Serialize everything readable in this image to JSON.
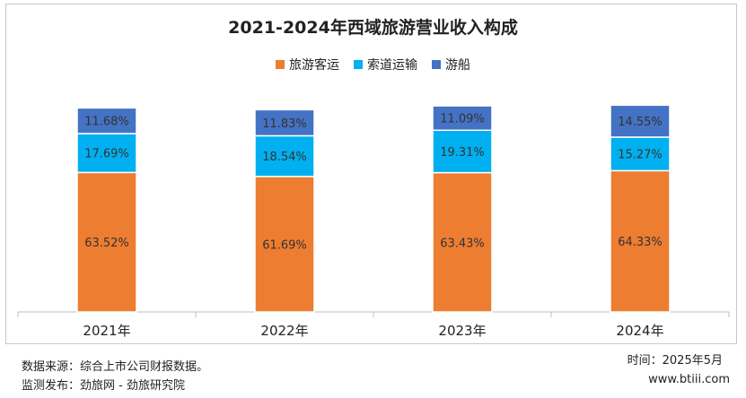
{
  "chart_data": {
    "type": "bar",
    "stacked": true,
    "title": "2021-2024年西域旅游营业收入构成",
    "categories": [
      "2021年",
      "2022年",
      "2023年",
      "2024年"
    ],
    "series": [
      {
        "name": "旅游客运",
        "color": "#ED7D31",
        "values": [
          63.52,
          61.69,
          63.43,
          64.33
        ],
        "labels": [
          "63.52%",
          "61.69%",
          "63.43%",
          "64.33%"
        ]
      },
      {
        "name": "索道运输",
        "color": "#00B0F0",
        "values": [
          17.69,
          18.54,
          19.31,
          15.27
        ],
        "labels": [
          "17.69%",
          "18.54%",
          "19.31%",
          "15.27%"
        ]
      },
      {
        "name": "游船",
        "color": "#4472C4",
        "values": [
          11.68,
          11.83,
          11.09,
          14.55
        ],
        "labels": [
          "11.68%",
          "11.83%",
          "11.09%",
          "14.55%"
        ]
      }
    ],
    "ylim": [
      0,
      100
    ],
    "grid": false,
    "legend_position": "top"
  },
  "footer": {
    "source": "数据来源：综合上市公司财报数据。",
    "publisher": "监测发布：劲旅网 - 劲旅研究院",
    "time": "时间：2025年5月",
    "website": "www.btiii.com"
  }
}
